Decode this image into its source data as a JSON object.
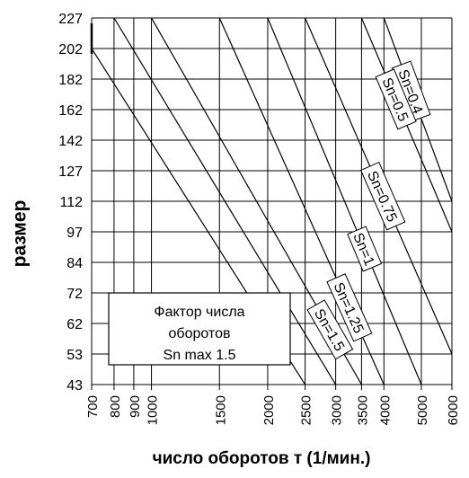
{
  "chart_data": {
    "type": "line",
    "title": "",
    "xlabel": "число оборотов т (1/мин.)",
    "ylabel": "размер",
    "x_ticks": [
      700,
      800,
      900,
      1000,
      1500,
      2000,
      2500,
      3000,
      3500,
      4000,
      5000,
      6000
    ],
    "y_ticks": [
      43,
      53,
      62,
      72,
      84,
      97,
      112,
      127,
      142,
      162,
      182,
      202,
      227
    ],
    "x_range": [
      700,
      6000
    ],
    "y_range": [
      43,
      227
    ],
    "grid": true,
    "series": [
      {
        "name": "Sn=0.4",
        "line_start": [
          4000,
          227
        ],
        "line_end": [
          6000,
          112
        ]
      },
      {
        "name": "Sn=0.5",
        "line_start": [
          3500,
          227
        ],
        "line_end": [
          6000,
          97
        ]
      },
      {
        "name": "Sn=0.75",
        "line_start": [
          2500,
          227
        ],
        "line_end": [
          6000,
          53
        ]
      },
      {
        "name": "Sn=1",
        "line_start": [
          2000,
          227
        ],
        "line_end": [
          5000,
          43
        ]
      },
      {
        "name": "Sn=1.25",
        "line_start": [
          1500,
          227
        ],
        "line_end": [
          4000,
          43
        ]
      },
      {
        "name": "Sn=1.5",
        "line_start": [
          1000,
          227
        ],
        "line_end": [
          3500,
          43
        ]
      }
    ],
    "extra_lines": [
      {
        "line_start": [
          800,
          227
        ],
        "line_end": [
          3000,
          43
        ]
      },
      {
        "line_start": [
          700,
          202
        ],
        "line_end": [
          2500,
          43
        ]
      }
    ],
    "annotation": {
      "lines": [
        "Фактор числа",
        "оборотов",
        "Sn max 1.5"
      ]
    }
  }
}
